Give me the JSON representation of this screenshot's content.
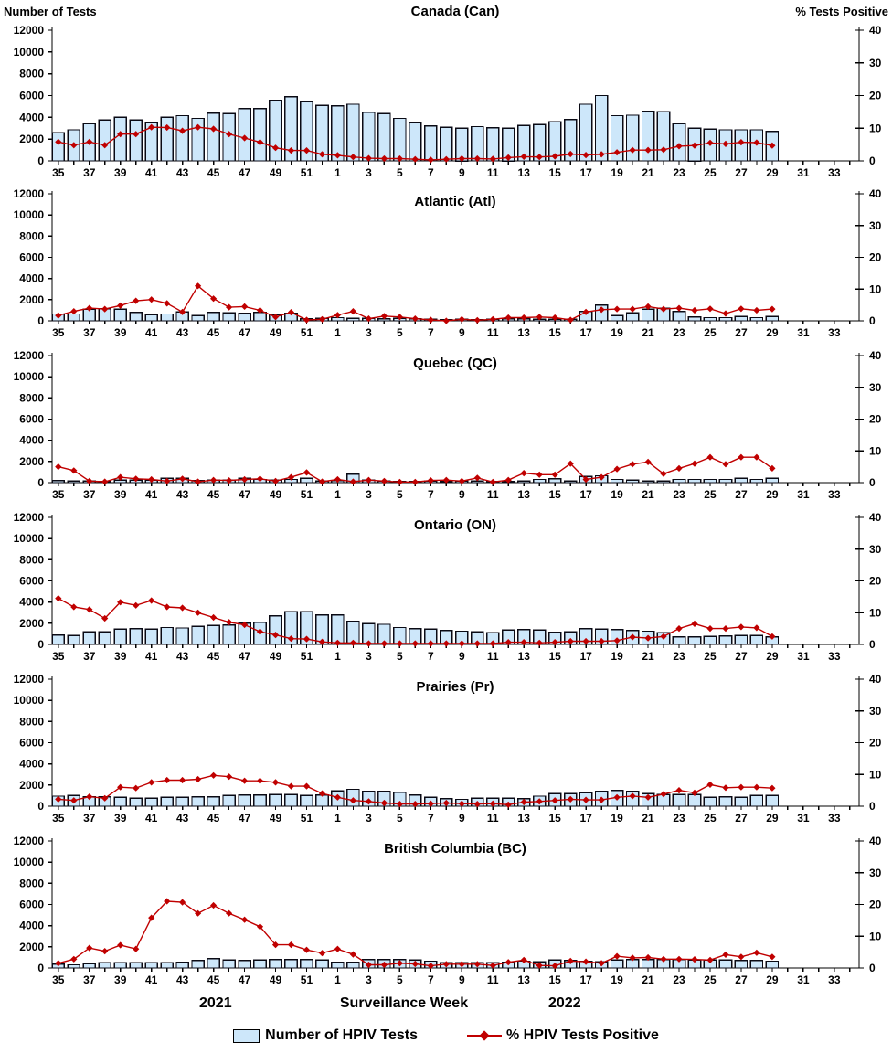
{
  "header": {
    "left_axis_header": "Number of Tests",
    "right_axis_header": "% Tests Positive"
  },
  "footer": {
    "year_left": "2021",
    "x_axis_label": "Surveillance Week",
    "year_right": "2022",
    "legend_bar_label": "Number of HPIV Tests",
    "legend_line_label": "% HPIV Tests Positive"
  },
  "chart_data": {
    "type": "bar+line",
    "title": "",
    "xlabel": "Surveillance Week",
    "year_labels": [
      "2021",
      "2022"
    ],
    "grid": false,
    "legend_position": "bottom",
    "series_legend": [
      "Number of HPIV Tests",
      "% HPIV Tests Positive"
    ],
    "colors": {
      "bar_fill": "#CDE7FA",
      "bar_border": "#0A0A14",
      "line": "#C00000",
      "text": "#000000"
    },
    "left_axis": {
      "title": "Number of Tests",
      "range": [
        0,
        12000
      ],
      "tick_step": 2000
    },
    "right_axis": {
      "title": "% Tests Positive",
      "range": [
        0,
        40
      ],
      "tick_step": 10
    },
    "x_tick_labels": [
      "35",
      "37",
      "39",
      "41",
      "43",
      "45",
      "47",
      "49",
      "51",
      "1",
      "3",
      "5",
      "7",
      "9",
      "11",
      "13",
      "15",
      "17",
      "19",
      "21",
      "23",
      "25",
      "27",
      "29",
      "31",
      "33"
    ],
    "weeks_with_data": [
      35,
      36,
      37,
      38,
      39,
      40,
      41,
      42,
      43,
      44,
      45,
      46,
      47,
      48,
      49,
      50,
      51,
      52,
      1,
      2,
      3,
      4,
      5,
      6,
      7,
      8,
      9,
      10,
      11,
      12,
      13,
      14,
      15,
      16,
      17,
      18,
      19,
      20,
      21,
      22,
      23,
      24,
      25,
      26,
      27,
      28,
      29
    ],
    "panels": [
      {
        "title": "Canada (Can)",
        "tests": [
          2600,
          2850,
          3400,
          3750,
          4000,
          3750,
          3500,
          4000,
          4150,
          3900,
          4400,
          4350,
          4800,
          4800,
          5550,
          5900,
          5450,
          5100,
          5050,
          5200,
          4450,
          4350,
          3900,
          3500,
          3200,
          3100,
          3000,
          3150,
          3050,
          3000,
          3250,
          3350,
          3600,
          3800,
          5200,
          6000,
          4150,
          4200,
          4550,
          4500,
          3400,
          3000,
          2900,
          2850,
          2850,
          2850,
          2700
        ],
        "pct_positive": [
          5.8,
          4.8,
          5.8,
          4.8,
          8.2,
          8.2,
          10.3,
          10.2,
          9.2,
          10.3,
          9.8,
          8.2,
          7.0,
          5.7,
          4.0,
          3.2,
          3.2,
          2.0,
          1.7,
          1.2,
          0.8,
          0.7,
          0.7,
          0.5,
          0.3,
          0.5,
          0.7,
          0.7,
          0.6,
          1.0,
          1.3,
          1.2,
          1.4,
          2.1,
          1.8,
          2.0,
          2.6,
          3.3,
          3.3,
          3.4,
          4.5,
          4.7,
          5.5,
          5.2,
          5.7,
          5.6,
          4.7
        ]
      },
      {
        "title": "Atlantic (Atl)",
        "tests": [
          650,
          650,
          1100,
          1150,
          1100,
          800,
          600,
          650,
          850,
          500,
          800,
          750,
          700,
          800,
          600,
          700,
          200,
          250,
          300,
          250,
          250,
          200,
          250,
          200,
          150,
          100,
          150,
          100,
          150,
          200,
          200,
          150,
          150,
          150,
          900,
          1500,
          500,
          750,
          1100,
          1200,
          900,
          350,
          300,
          300,
          400,
          300,
          400
        ],
        "pct_positive": [
          1.7,
          3.0,
          4.0,
          3.7,
          4.8,
          6.3,
          6.7,
          5.5,
          2.8,
          11.0,
          7.0,
          4.3,
          4.5,
          3.3,
          1.2,
          2.7,
          0.3,
          0.5,
          1.8,
          3.0,
          0.7,
          1.5,
          1.2,
          0.7,
          0.3,
          0.0,
          0.5,
          0.2,
          0.5,
          1.0,
          1.0,
          1.2,
          1.0,
          0.3,
          2.8,
          3.5,
          3.7,
          3.7,
          4.5,
          3.7,
          4.0,
          3.3,
          3.8,
          2.3,
          3.8,
          3.3,
          3.7
        ]
      },
      {
        "title": "Quebec (QC)",
        "tests": [
          200,
          150,
          150,
          100,
          250,
          250,
          250,
          400,
          400,
          200,
          250,
          250,
          400,
          300,
          250,
          300,
          400,
          150,
          200,
          800,
          250,
          150,
          100,
          100,
          150,
          100,
          150,
          150,
          100,
          100,
          150,
          300,
          350,
          150,
          600,
          650,
          300,
          250,
          150,
          150,
          300,
          300,
          300,
          300,
          400,
          300,
          400
        ],
        "pct_positive": [
          5.0,
          3.8,
          0.5,
          0.3,
          1.7,
          1.2,
          1.0,
          0.5,
          1.2,
          0.3,
          0.8,
          0.7,
          1.0,
          1.2,
          0.5,
          1.7,
          3.2,
          0.3,
          1.0,
          0.3,
          0.8,
          0.5,
          0.2,
          0.2,
          0.7,
          0.8,
          0.5,
          1.5,
          0.2,
          0.8,
          3.0,
          2.5,
          2.5,
          6.0,
          1.0,
          1.7,
          4.3,
          5.8,
          6.5,
          2.8,
          4.5,
          6.0,
          8.0,
          5.8,
          8.0,
          8.0,
          4.5
        ]
      },
      {
        "title": "Ontario (ON)",
        "tests": [
          900,
          850,
          1200,
          1200,
          1450,
          1500,
          1450,
          1600,
          1550,
          1700,
          1800,
          1850,
          2000,
          2100,
          2700,
          3100,
          3100,
          2800,
          2800,
          2200,
          1950,
          1900,
          1600,
          1500,
          1450,
          1300,
          1250,
          1200,
          1100,
          1350,
          1400,
          1350,
          1150,
          1200,
          1500,
          1450,
          1400,
          1300,
          1250,
          1100,
          700,
          700,
          750,
          800,
          850,
          850,
          700
        ],
        "pct_positive": [
          14.5,
          11.8,
          11.0,
          8.2,
          13.3,
          12.3,
          13.8,
          11.8,
          11.5,
          10.0,
          8.5,
          7.0,
          6.2,
          4.0,
          3.0,
          1.8,
          1.7,
          0.8,
          0.5,
          0.5,
          0.3,
          0.3,
          0.3,
          0.3,
          0.3,
          0.3,
          0.3,
          0.3,
          0.3,
          0.7,
          0.7,
          0.5,
          0.7,
          1.0,
          1.0,
          1.0,
          1.2,
          2.3,
          2.0,
          2.5,
          5.0,
          6.5,
          5.0,
          5.0,
          5.5,
          5.2,
          2.5
        ]
      },
      {
        "title": "Prairies (Pr)",
        "tests": [
          950,
          1000,
          900,
          900,
          850,
          750,
          750,
          850,
          850,
          900,
          900,
          1000,
          1050,
          1050,
          1100,
          1100,
          1000,
          1050,
          1450,
          1600,
          1400,
          1400,
          1300,
          1050,
          850,
          700,
          650,
          750,
          750,
          750,
          700,
          950,
          1200,
          1200,
          1250,
          1400,
          1500,
          1400,
          1200,
          1100,
          1100,
          1100,
          850,
          900,
          850,
          1000,
          1000
        ],
        "pct_positive": [
          2.2,
          1.8,
          3.0,
          2.5,
          6.0,
          5.7,
          7.5,
          8.2,
          8.2,
          8.5,
          9.7,
          9.3,
          8.0,
          8.0,
          7.5,
          6.3,
          6.3,
          4.0,
          2.8,
          1.8,
          1.5,
          1.0,
          0.7,
          0.7,
          0.8,
          1.0,
          0.8,
          0.7,
          0.8,
          0.5,
          1.3,
          1.5,
          1.8,
          2.2,
          2.0,
          2.0,
          2.8,
          3.2,
          2.8,
          3.8,
          5.0,
          4.2,
          6.8,
          5.8,
          6.0,
          6.0,
          5.7
        ]
      },
      {
        "title": "British Columbia (BC)",
        "tests": [
          350,
          300,
          400,
          500,
          500,
          500,
          500,
          500,
          550,
          700,
          900,
          750,
          700,
          750,
          800,
          800,
          800,
          750,
          550,
          550,
          800,
          800,
          800,
          750,
          650,
          500,
          500,
          500,
          500,
          550,
          650,
          600,
          750,
          700,
          650,
          600,
          750,
          800,
          800,
          800,
          800,
          750,
          750,
          750,
          700,
          700,
          650
        ],
        "pct_positive": [
          1.5,
          2.8,
          6.3,
          5.3,
          7.2,
          6.0,
          15.8,
          21.0,
          20.7,
          17.2,
          19.7,
          17.2,
          15.2,
          13.0,
          7.3,
          7.3,
          5.7,
          4.7,
          6.0,
          4.3,
          1.0,
          1.0,
          1.5,
          1.3,
          0.7,
          1.2,
          1.2,
          1.2,
          0.8,
          1.8,
          2.5,
          0.8,
          0.7,
          2.2,
          2.0,
          1.5,
          3.7,
          3.2,
          3.3,
          2.8,
          2.8,
          2.7,
          2.5,
          4.2,
          3.5,
          4.8,
          3.5
        ]
      }
    ]
  }
}
